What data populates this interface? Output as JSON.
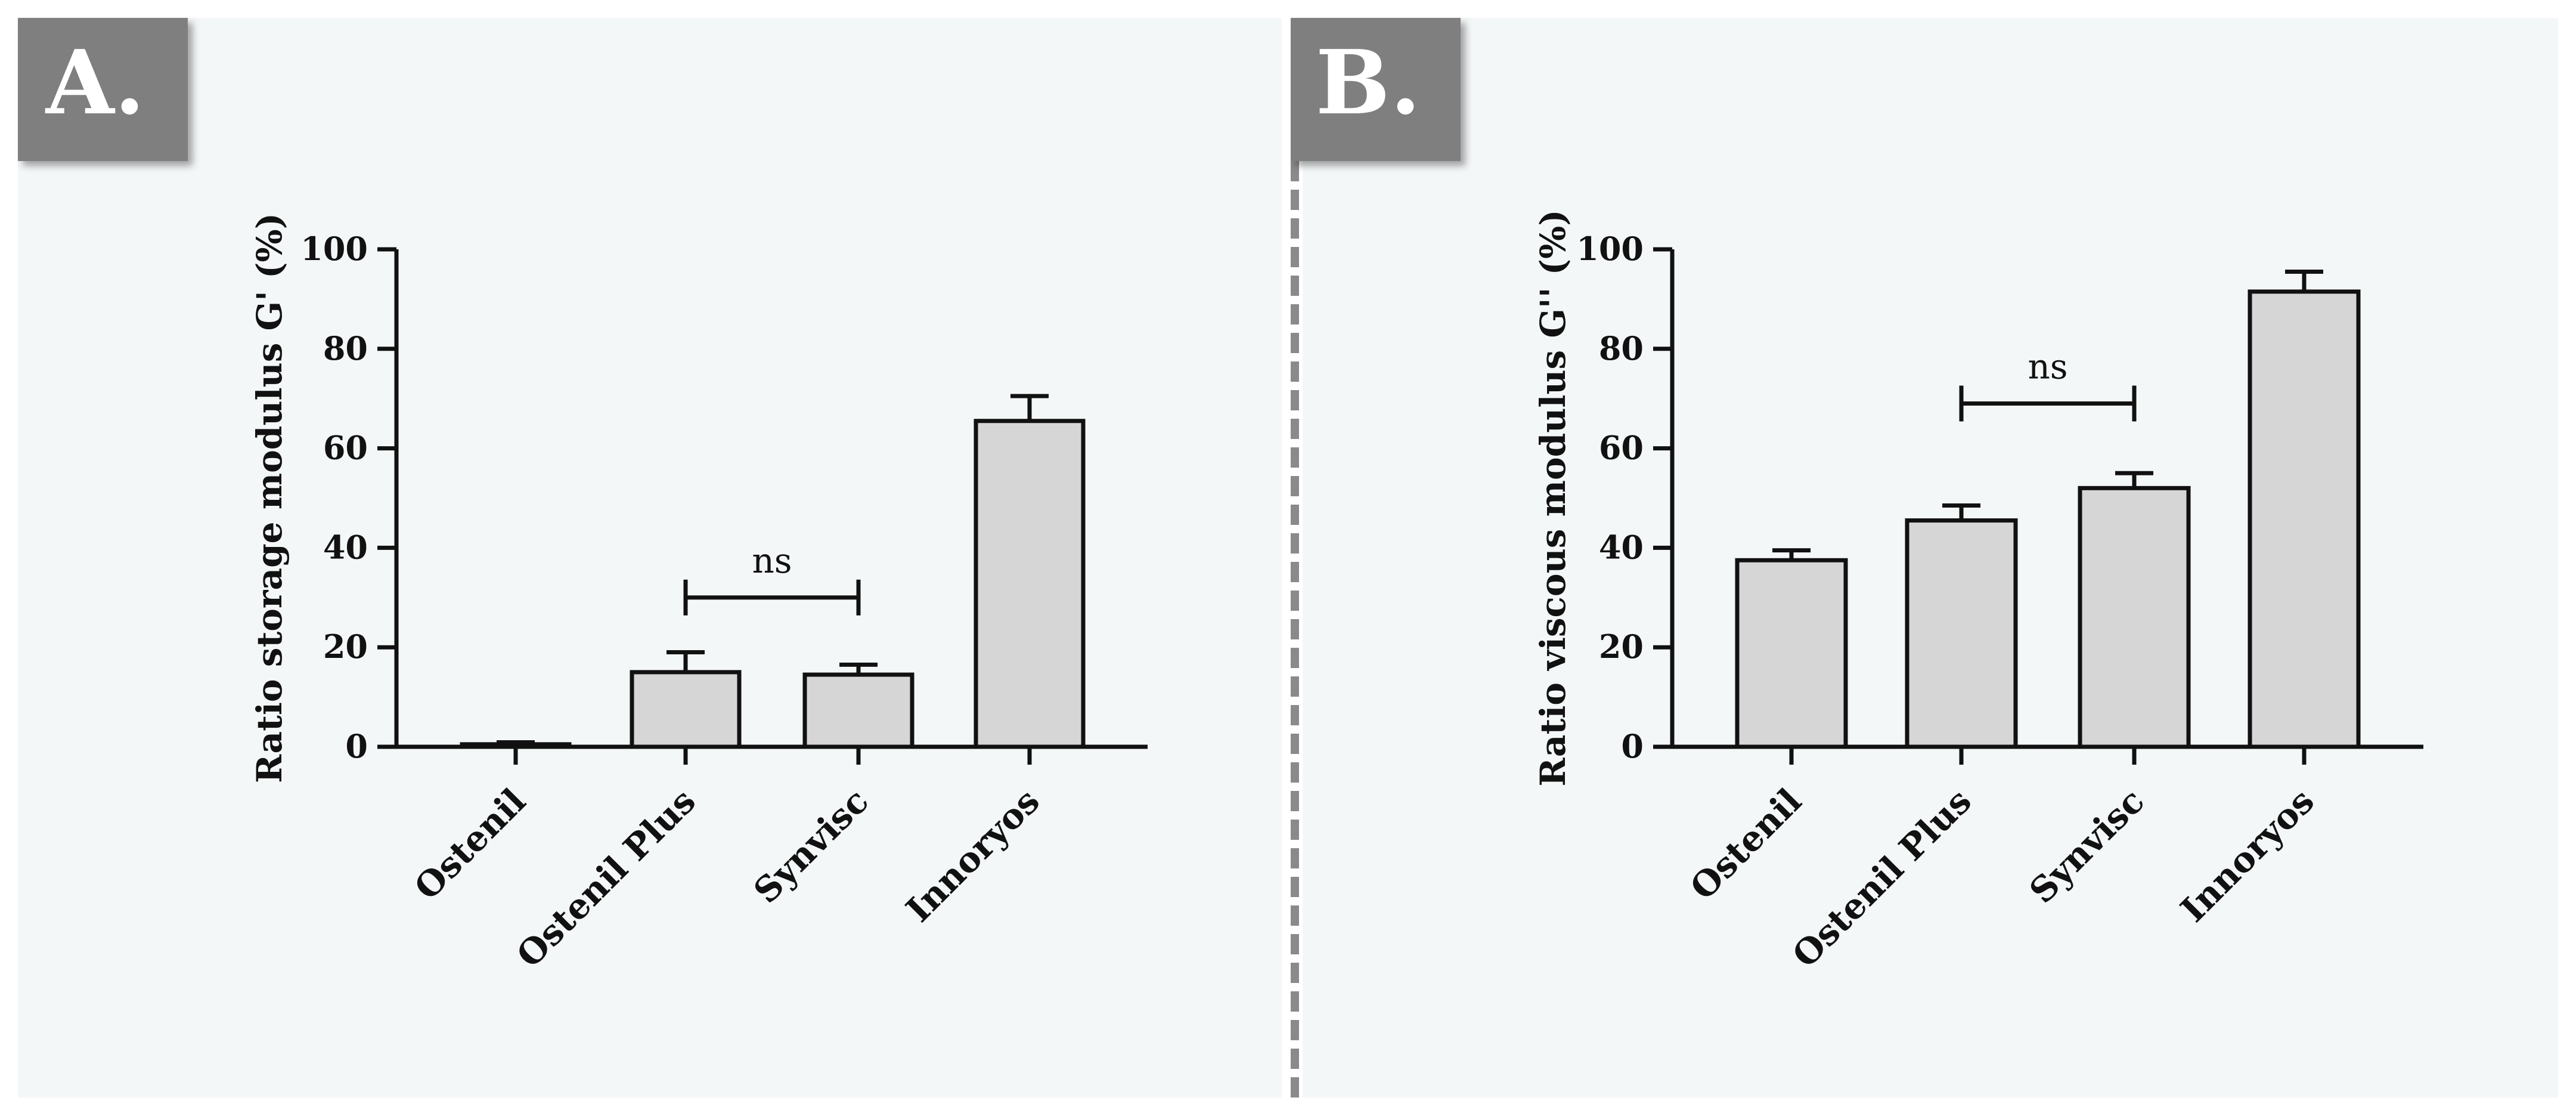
{
  "panels": [
    {
      "label": "A."
    },
    {
      "label": "B."
    }
  ],
  "colors": {
    "panel_bg": "#f4f7f8",
    "label_box": "#7f7f7f",
    "label_text": "#ffffff",
    "bar_fill": "#d6d6d6",
    "stroke": "#111111",
    "divider": "#8a8a8a"
  },
  "chart_data": [
    {
      "type": "bar",
      "title": "",
      "xlabel": "",
      "ylabel": "Ratio storage modulus G' (%)",
      "ylim": [
        0,
        100
      ],
      "yticks": [
        0,
        20,
        40,
        60,
        80,
        100
      ],
      "grid": false,
      "categories": [
        "Ostenil",
        "Ostenil Plus",
        "Synvisc",
        "Innoryos"
      ],
      "values": [
        0.5,
        15,
        14.5,
        65.5
      ],
      "errors": [
        0.4,
        4,
        2,
        5
      ],
      "annotations": [
        {
          "text": "ns",
          "from": "Ostenil Plus",
          "to": "Synvisc",
          "y": 30
        }
      ]
    },
    {
      "type": "bar",
      "title": "",
      "xlabel": "",
      "ylabel": "Ratio viscous modulus G'' (%)",
      "ylim": [
        0,
        100
      ],
      "yticks": [
        0,
        20,
        40,
        60,
        80,
        100
      ],
      "grid": false,
      "categories": [
        "Ostenil",
        "Ostenil Plus",
        "Synvisc",
        "Innoryos"
      ],
      "values": [
        37.5,
        45.5,
        52,
        91.5
      ],
      "errors": [
        2,
        3,
        3,
        4
      ],
      "annotations": [
        {
          "text": "ns",
          "from": "Ostenil Plus",
          "to": "Synvisc",
          "y": 69
        }
      ]
    }
  ]
}
